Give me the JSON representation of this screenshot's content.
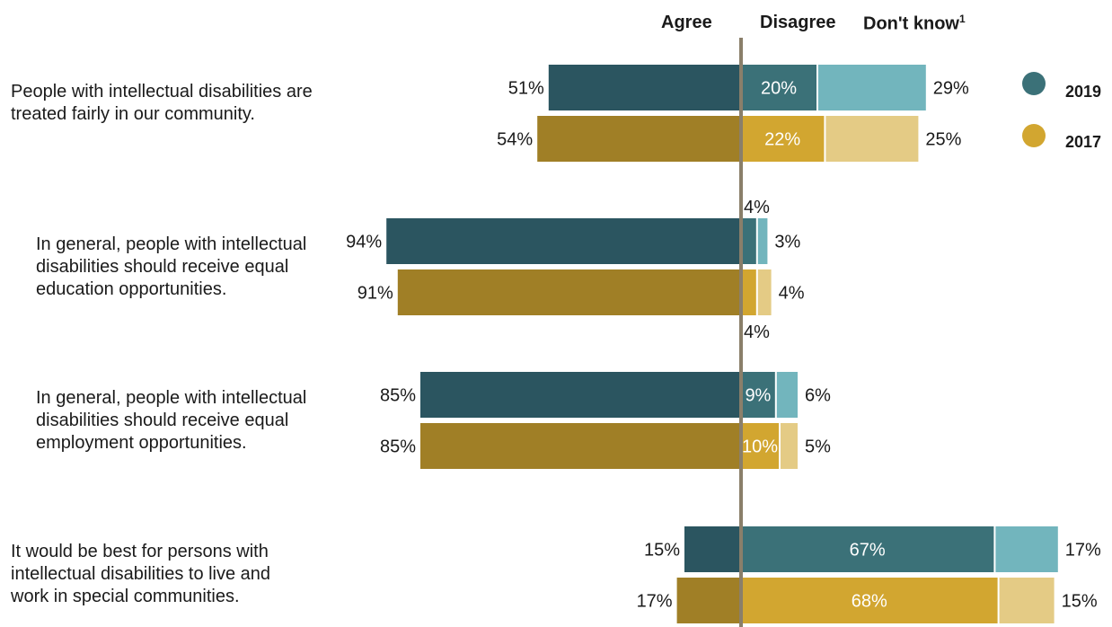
{
  "chart_data": {
    "type": "bar",
    "orientation": "horizontal",
    "stacked": true,
    "diverging": true,
    "headers": {
      "agree": "Agree",
      "disagree": "Disagree",
      "dont_know": "Don't know",
      "dont_know_footnote": "1"
    },
    "series": [
      {
        "name": "2019",
        "color_agree": "#2b5560",
        "color_disagree": "#3b7178",
        "color_dontknow": "#72b5bd"
      },
      {
        "name": "2017",
        "color_agree": "#a07f26",
        "color_disagree": "#d2a630",
        "color_dontknow": "#e4cb85"
      }
    ],
    "categories": [
      {
        "label": "People with intellectual disabilities are treated fairly in our community.",
        "rows": [
          {
            "year": "2019",
            "agree": 51,
            "disagree": 20,
            "dont_know": 29,
            "agree_label": "51%",
            "disagree_label": "20%",
            "dont_know_label": "29%"
          },
          {
            "year": "2017",
            "agree": 54,
            "disagree": 22,
            "dont_know": 25,
            "agree_label": "54%",
            "disagree_label": "22%",
            "dont_know_label": "25%"
          }
        ]
      },
      {
        "label": "In general, people with intellectual disabilities should receive equal education opportunities.",
        "rows": [
          {
            "year": "2019",
            "agree": 94,
            "disagree": 4,
            "dont_know": 3,
            "agree_label": "94%",
            "disagree_label": "4%",
            "dont_know_label": "3%"
          },
          {
            "year": "2017",
            "agree": 91,
            "disagree": 4,
            "dont_know": 4,
            "agree_label": "91%",
            "disagree_label": "4%",
            "dont_know_label": "4%"
          }
        ]
      },
      {
        "label": "In general, people with intellectual disabilities should receive equal employment opportunities.",
        "rows": [
          {
            "year": "2019",
            "agree": 85,
            "disagree": 9,
            "dont_know": 6,
            "agree_label": "85%",
            "disagree_label": "9%",
            "dont_know_label": "6%"
          },
          {
            "year": "2017",
            "agree": 85,
            "disagree": 10,
            "dont_know": 5,
            "agree_label": "85%",
            "disagree_label": "10%",
            "dont_know_label": "5%"
          }
        ]
      },
      {
        "label": "It would be best for persons with intellectual disabilities to live and work in special communities.",
        "rows": [
          {
            "year": "2019",
            "agree": 15,
            "disagree": 67,
            "dont_know": 17,
            "agree_label": "15%",
            "disagree_label": "67%",
            "dont_know_label": "17%"
          },
          {
            "year": "2017",
            "agree": 17,
            "disagree": 68,
            "dont_know": 15,
            "agree_label": "17%",
            "disagree_label": "68%",
            "dont_know_label": "15%"
          }
        ]
      }
    ],
    "legend": {
      "position": "right",
      "items": [
        {
          "label": "2019",
          "color": "#3b7178"
        },
        {
          "label": "2017",
          "color": "#d2a630"
        }
      ]
    },
    "center_line_color": "#8a7f6a"
  }
}
